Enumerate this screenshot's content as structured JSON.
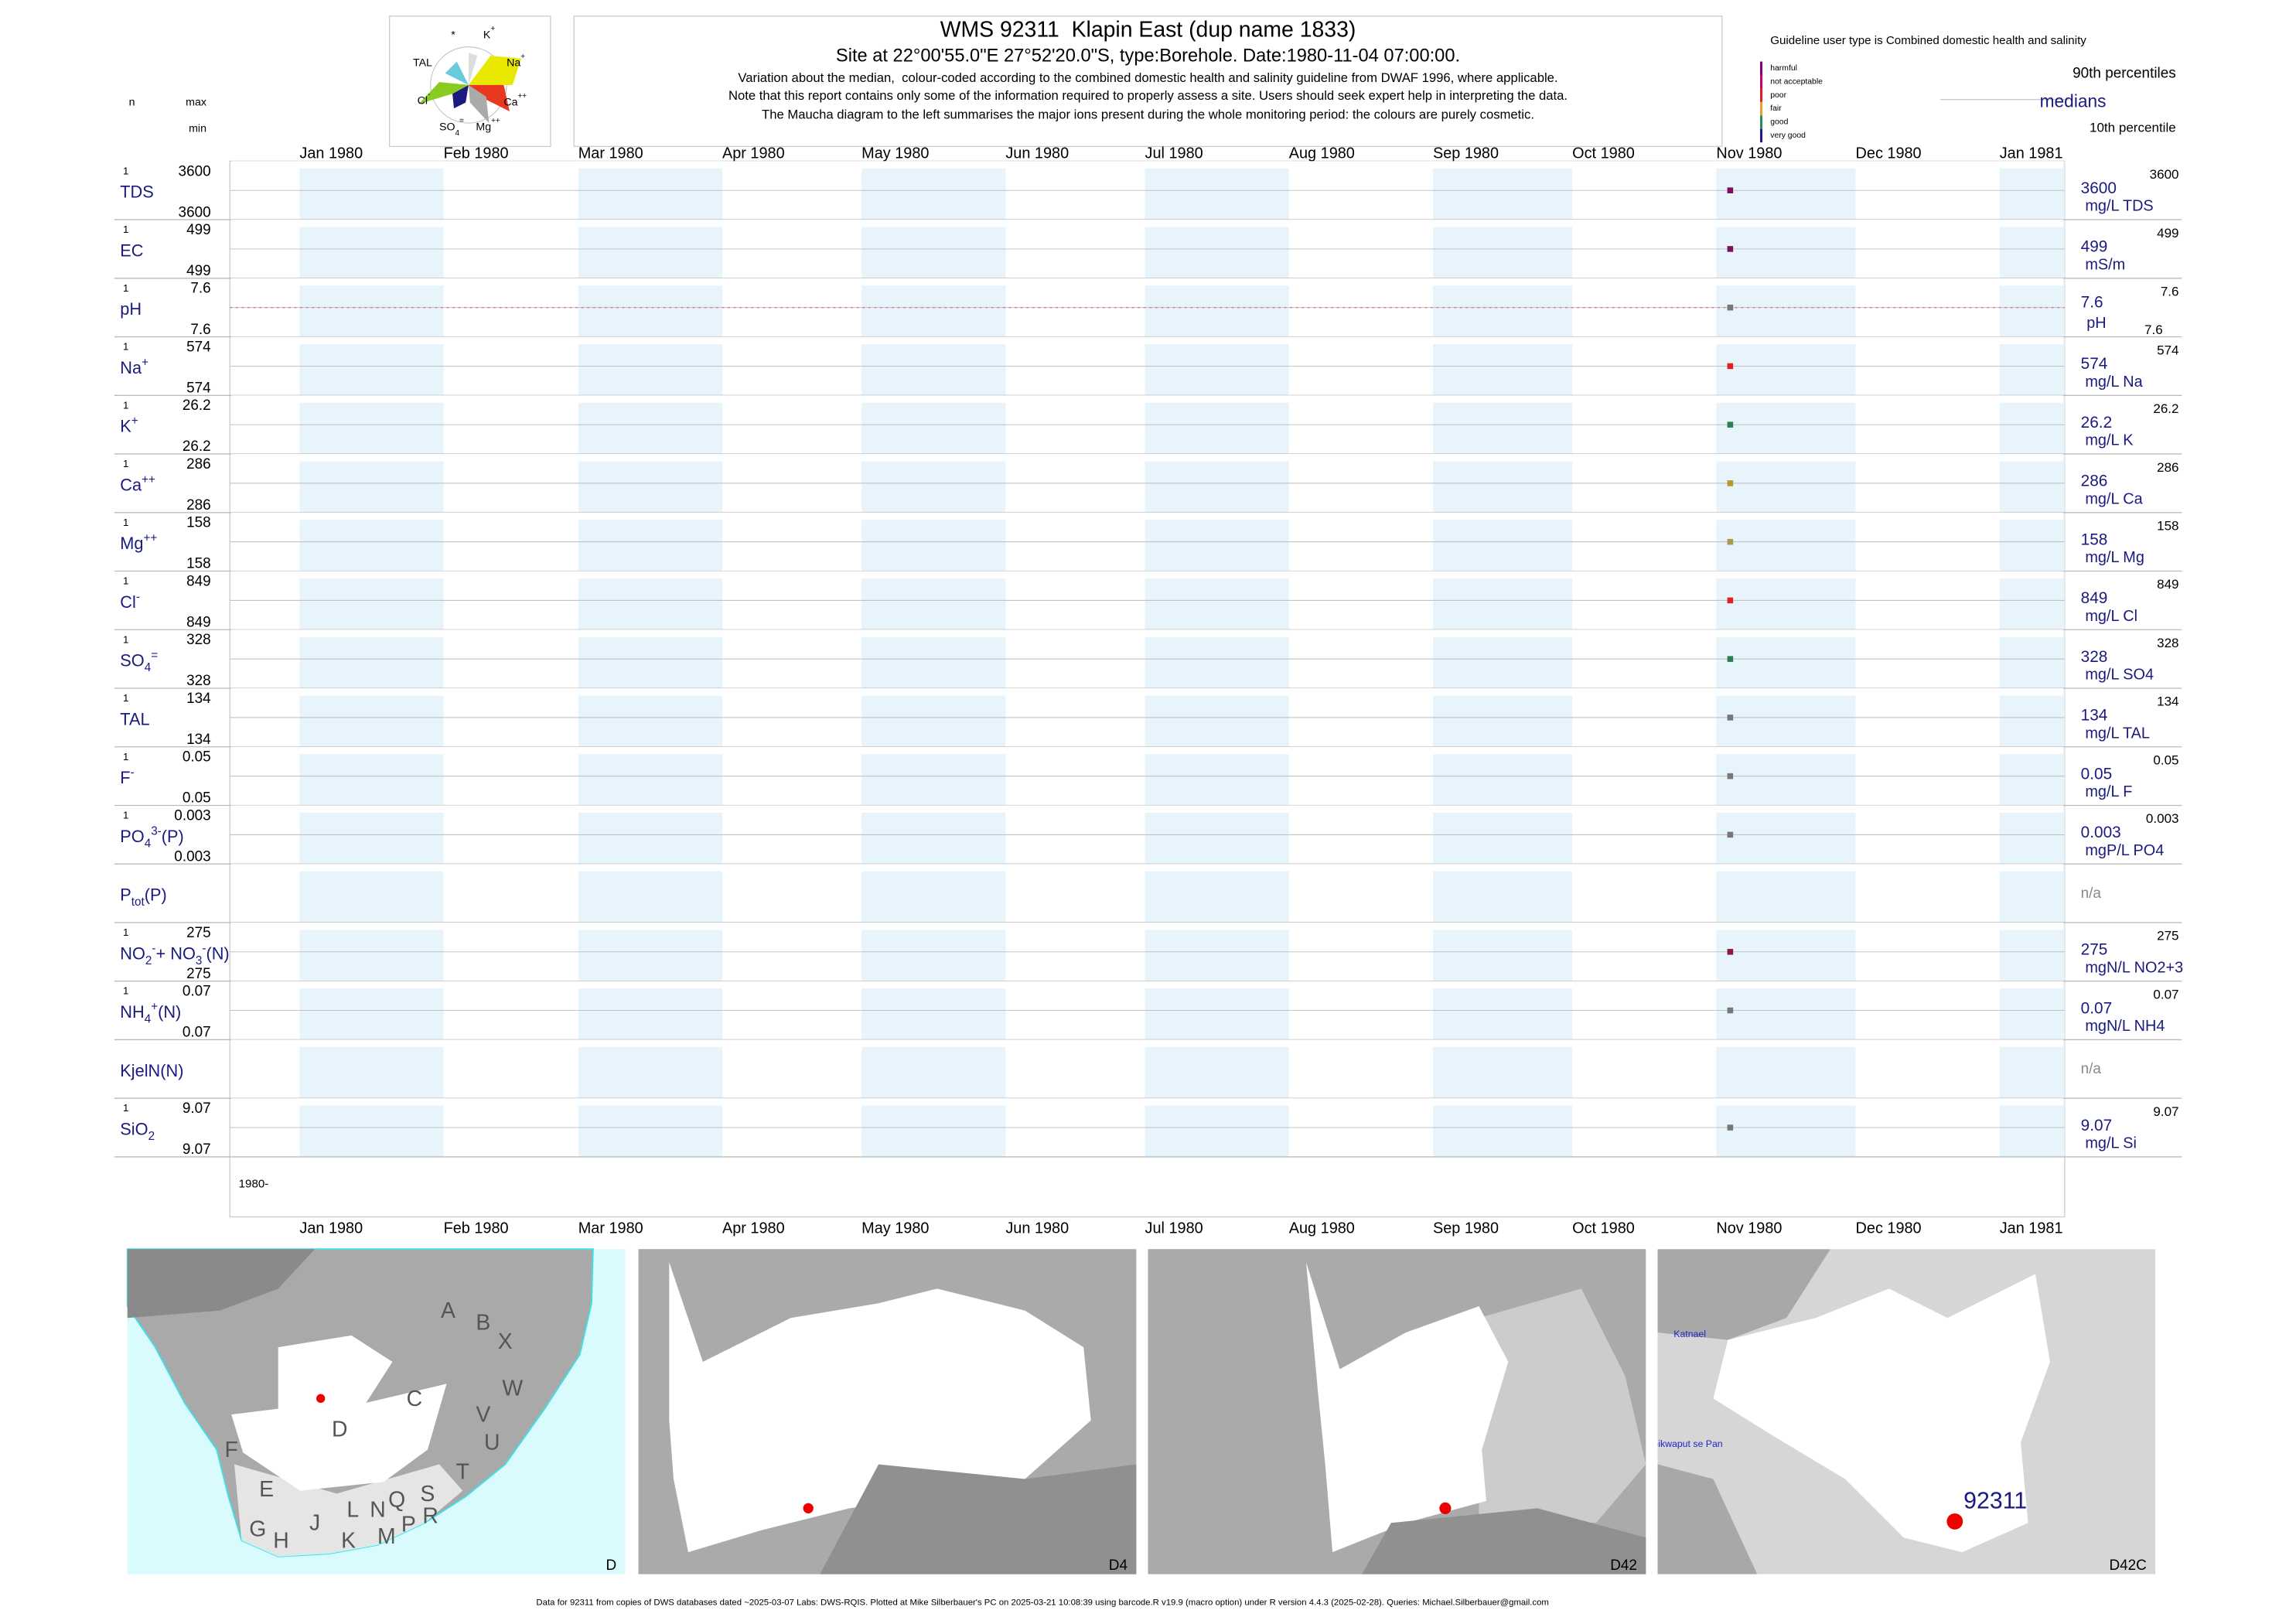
{
  "header": {
    "title": "WMS 92311  Klapin East (dup name 1833)",
    "subtitle": "Site at 22°00'55.0\"E 27°52'20.0\"S, type:Borehole. Date:1980-11-04 07:00:00.",
    "notes": [
      "Variation about the median,  colour-coded according to the combined domestic health and salinity guideline from DWAF 1996, where applicable.",
      "Note that this report contains only some of the information required to properly assess a site. Users should seek expert help in interpreting the data.",
      "The Maucha diagram to the left summarises the major ions present during the whole monitoring period: the colours are purely cosmetic."
    ]
  },
  "maucha": {
    "labels": [
      [
        {
          "text": "*"
        }
      ],
      [
        {
          "text": "K"
        },
        {
          "sup": "+"
        }
      ],
      [
        {
          "text": "TAL"
        }
      ],
      [
        {
          "text": "Na"
        },
        {
          "sup": "+"
        }
      ],
      [
        {
          "text": "Cl"
        },
        {
          "sup": "-"
        }
      ],
      [
        {
          "text": "Ca"
        },
        {
          "sup": "++"
        }
      ],
      [
        {
          "text": "SO"
        },
        {
          "sub": "4"
        },
        {
          "sup": "="
        }
      ],
      [
        {
          "text": "Mg"
        },
        {
          "sup": "++"
        }
      ]
    ]
  },
  "legend": {
    "caption": "Guideline user type is Combined domestic health and salinity",
    "classes": [
      {
        "label": "harmful",
        "color": "#800080"
      },
      {
        "label": "not acceptable",
        "color": "#cc0066"
      },
      {
        "label": "poor",
        "color": "#e02020"
      },
      {
        "label": "fair",
        "color": "#e8a030"
      },
      {
        "label": "good",
        "color": "#2e8b57"
      },
      {
        "label": "very good",
        "color": "#1a1a9a"
      }
    ],
    "p90": "90th percentiles",
    "median": "medians",
    "p10": "10th percentile"
  },
  "columns": {
    "n": "n",
    "max": "max",
    "min": "min"
  },
  "timeline": {
    "xlim": [
      "1979-12-17",
      "1981-01-15"
    ],
    "ticks": [
      {
        "value": "1980-01-01",
        "label": "Jan 1980"
      },
      {
        "value": "1980-02-01",
        "label": "Feb 1980"
      },
      {
        "value": "1980-03-01",
        "label": "Mar 1980"
      },
      {
        "value": "1980-04-01",
        "label": "Apr 1980"
      },
      {
        "value": "1980-05-01",
        "label": "May 1980"
      },
      {
        "value": "1980-06-01",
        "label": "Jun 1980"
      },
      {
        "value": "1980-07-01",
        "label": "Jul 1980"
      },
      {
        "value": "1980-08-01",
        "label": "Aug 1980"
      },
      {
        "value": "1980-09-01",
        "label": "Sep 1980"
      },
      {
        "value": "1980-10-01",
        "label": "Oct 1980"
      },
      {
        "value": "1980-11-01",
        "label": "Nov 1980"
      },
      {
        "value": "1980-12-01",
        "label": "Dec 1980"
      },
      {
        "value": "1981-01-01",
        "label": "Jan 1981"
      }
    ],
    "start_label": "1980-",
    "sample_date": "1980-11-04"
  },
  "rows": [
    {
      "label": [
        {
          "text": "TDS"
        }
      ],
      "n": 1,
      "max": 3600,
      "min": 3600,
      "median": 3600,
      "unit": "mg/L TDS",
      "p90": 3600,
      "color": "#7a1060"
    },
    {
      "label": [
        {
          "text": "EC"
        }
      ],
      "n": 1,
      "max": 499,
      "min": 499,
      "median": 499,
      "unit": "mS/m",
      "p90": 499,
      "color": "#7a1060"
    },
    {
      "label": [
        {
          "text": "pH"
        }
      ],
      "n": 1,
      "max": 7.6,
      "min": 7.6,
      "median": 7.6,
      "unit": "pH",
      "p90": 7.6,
      "p10": 7.6,
      "color": "#777777",
      "median_line": true
    },
    {
      "label": [
        {
          "text": "Na"
        },
        {
          "sup": "+"
        }
      ],
      "n": 1,
      "max": 574,
      "min": 574,
      "median": 574,
      "unit": "mg/L Na",
      "p90": 574,
      "color": "#e02020"
    },
    {
      "label": [
        {
          "text": "K"
        },
        {
          "sup": "+"
        }
      ],
      "n": 1,
      "max": 26.2,
      "min": 26.2,
      "median": 26.2,
      "unit": "mg/L K",
      "p90": 26.2,
      "color": "#2e7d4f"
    },
    {
      "label": [
        {
          "text": "Ca"
        },
        {
          "sup": "++"
        }
      ],
      "n": 1,
      "max": 286,
      "min": 286,
      "median": 286,
      "unit": "mg/L Ca",
      "p90": 286,
      "color": "#b8962e"
    },
    {
      "label": [
        {
          "text": "Mg"
        },
        {
          "sup": "++"
        }
      ],
      "n": 1,
      "max": 158,
      "min": 158,
      "median": 158,
      "unit": "mg/L Mg",
      "p90": 158,
      "color": "#a89a50"
    },
    {
      "label": [
        {
          "text": "Cl"
        },
        {
          "sup": "-"
        }
      ],
      "n": 1,
      "max": 849,
      "min": 849,
      "median": 849,
      "unit": "mg/L Cl",
      "p90": 849,
      "color": "#e02020"
    },
    {
      "label": [
        {
          "text": "SO"
        },
        {
          "sub": "4"
        },
        {
          "sup": "="
        }
      ],
      "n": 1,
      "max": 328,
      "min": 328,
      "median": 328,
      "unit": "mg/L SO4",
      "p90": 328,
      "color": "#2e7d4f"
    },
    {
      "label": [
        {
          "text": "TAL"
        }
      ],
      "n": 1,
      "max": 134,
      "min": 134,
      "median": 134,
      "unit": "mg/L TAL",
      "p90": 134,
      "color": "#777777"
    },
    {
      "label": [
        {
          "text": "F"
        },
        {
          "sup": "-"
        }
      ],
      "n": 1,
      "max": 0.05,
      "min": 0.05,
      "median": 0.05,
      "unit": "mg/L F",
      "p90": 0.05,
      "color": "#777777"
    },
    {
      "label": [
        {
          "text": "PO"
        },
        {
          "sub": "4"
        },
        {
          "sup": "3-"
        },
        {
          "text": "(P)"
        }
      ],
      "n": 1,
      "max": 0.003,
      "min": 0.003,
      "median": 0.003,
      "unit": "mgP/L PO4",
      "p90": 0.003,
      "color": "#777777"
    },
    {
      "label": [
        {
          "text": "P"
        },
        {
          "sub": "tot"
        },
        {
          "text": "(P)"
        }
      ],
      "value_label": "n/a"
    },
    {
      "label": [
        {
          "text": "NO"
        },
        {
          "sub": "2"
        },
        {
          "sup": "-"
        },
        {
          "text": "+ NO"
        },
        {
          "sub": "3"
        },
        {
          "sup": "-"
        },
        {
          "text": "(N)"
        }
      ],
      "n": 1,
      "max": 275,
      "min": 275,
      "median": 275,
      "unit": "mgN/L NO2+3",
      "p90": 275,
      "color": "#8b1a3a"
    },
    {
      "label": [
        {
          "text": "NH"
        },
        {
          "sub": "4"
        },
        {
          "sup": "+"
        },
        {
          "text": "(N)"
        }
      ],
      "n": 1,
      "max": 0.07,
      "min": 0.07,
      "median": 0.07,
      "unit": "mgN/L NH4",
      "p90": 0.07,
      "color": "#777777"
    },
    {
      "label": [
        {
          "text": "KjelN(N)"
        }
      ],
      "value_label": "n/a"
    },
    {
      "label": [
        {
          "text": "SiO"
        },
        {
          "sub": "2"
        }
      ],
      "n": 1,
      "max": 9.07,
      "min": 9.07,
      "median": 9.07,
      "unit": "mg/L Si",
      "p90": 9.07,
      "color": "#777777"
    }
  ],
  "maps": [
    {
      "label": "D",
      "places": [
        "A",
        "B",
        "X",
        "W",
        "C",
        "V",
        "U",
        "D",
        "F",
        "E",
        "T",
        "S",
        "R",
        "Q",
        "N",
        "L",
        "P",
        "M",
        "K",
        "J",
        "H",
        "G"
      ]
    },
    {
      "label": "D4"
    },
    {
      "label": "D42"
    },
    {
      "label": "D42C",
      "places": [
        "Katnael",
        "Ibikwaput se Pan",
        "92311"
      ]
    }
  ],
  "footer": "Data for 92311 from copies of DWS databases dated ~2025-03-07 Labs: DWS-RQIS. Plotted at Mike Silberbauer's PC on 2025-03-21 10:08:39 using barcode.R v19.9 (macro option) under R version 4.4.3 (2025-02-28). Queries: Michael.Silberbauer@gmail.com"
}
